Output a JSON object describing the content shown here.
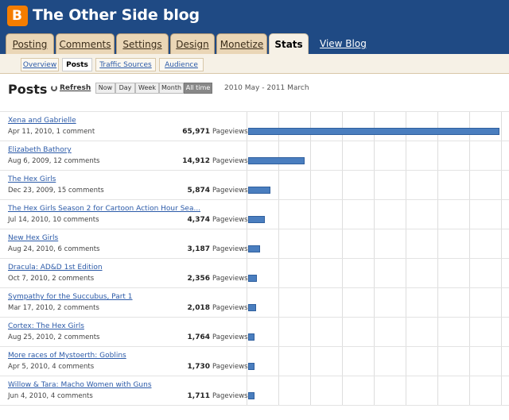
{
  "header": {
    "logo_letter": "B",
    "blog_title": "The Other Side blog",
    "accent_color": "#1f4a84"
  },
  "tabs": [
    {
      "label": "Posting",
      "active": false
    },
    {
      "label": "Comments",
      "active": false
    },
    {
      "label": "Settings",
      "active": false
    },
    {
      "label": "Design",
      "active": false
    },
    {
      "label": "Monetize",
      "active": false
    },
    {
      "label": "Stats",
      "active": true
    }
  ],
  "view_blog_label": "View Blog",
  "subtabs": [
    {
      "label": "Overview",
      "active": false
    },
    {
      "label": "Posts",
      "active": true
    },
    {
      "label": "Traffic Sources",
      "active": false
    },
    {
      "label": "Audience",
      "active": false
    }
  ],
  "toolbar": {
    "page_title": "Posts",
    "refresh_label": "Refresh",
    "ranges": [
      {
        "label": "Now",
        "active": false
      },
      {
        "label": "Day",
        "active": false
      },
      {
        "label": "Week",
        "active": false
      },
      {
        "label": "Month",
        "active": false
      },
      {
        "label": "All time",
        "active": true
      }
    ],
    "date_range": "2010 May - 2011 March"
  },
  "pageview_label": "Pageviews",
  "posts": [
    {
      "title": "Xena and Gabrielle",
      "meta": "Apr 11, 2010, 1 comment",
      "pageviews": "65,971",
      "value": 65971
    },
    {
      "title": "Elizabeth Bathory",
      "meta": "Aug 6, 2009, 12 comments",
      "pageviews": "14,912",
      "value": 14912
    },
    {
      "title": "The Hex Girls",
      "meta": "Dec 23, 2009, 15 comments",
      "pageviews": "5,874",
      "value": 5874
    },
    {
      "title": "The Hex Girls Season 2 for Cartoon Action Hour Sea...",
      "meta": "Jul 14, 2010, 10 comments",
      "pageviews": "4,374",
      "value": 4374
    },
    {
      "title": "New Hex Girls",
      "meta": "Aug 24, 2010, 6 comments",
      "pageviews": "3,187",
      "value": 3187
    },
    {
      "title": "Dracula: AD&D 1st Edition",
      "meta": "Oct 7, 2010, 2 comments",
      "pageviews": "2,356",
      "value": 2356
    },
    {
      "title": "Sympathy for the Succubus, Part 1",
      "meta": "Mar 17, 2010, 2 comments",
      "pageviews": "2,018",
      "value": 2018
    },
    {
      "title": "Cortex: The Hex Girls",
      "meta": "Aug 25, 2010, 2 comments",
      "pageviews": "1,764",
      "value": 1764
    },
    {
      "title": "More races of Mystoerth: Goblins",
      "meta": "Apr 5, 2010, 4 comments",
      "pageviews": "1,730",
      "value": 1730
    },
    {
      "title": "Willow & Tara: Macho Women with Guns",
      "meta": "Jun 4, 2010, 4 comments",
      "pageviews": "1,711",
      "value": 1711
    }
  ]
}
